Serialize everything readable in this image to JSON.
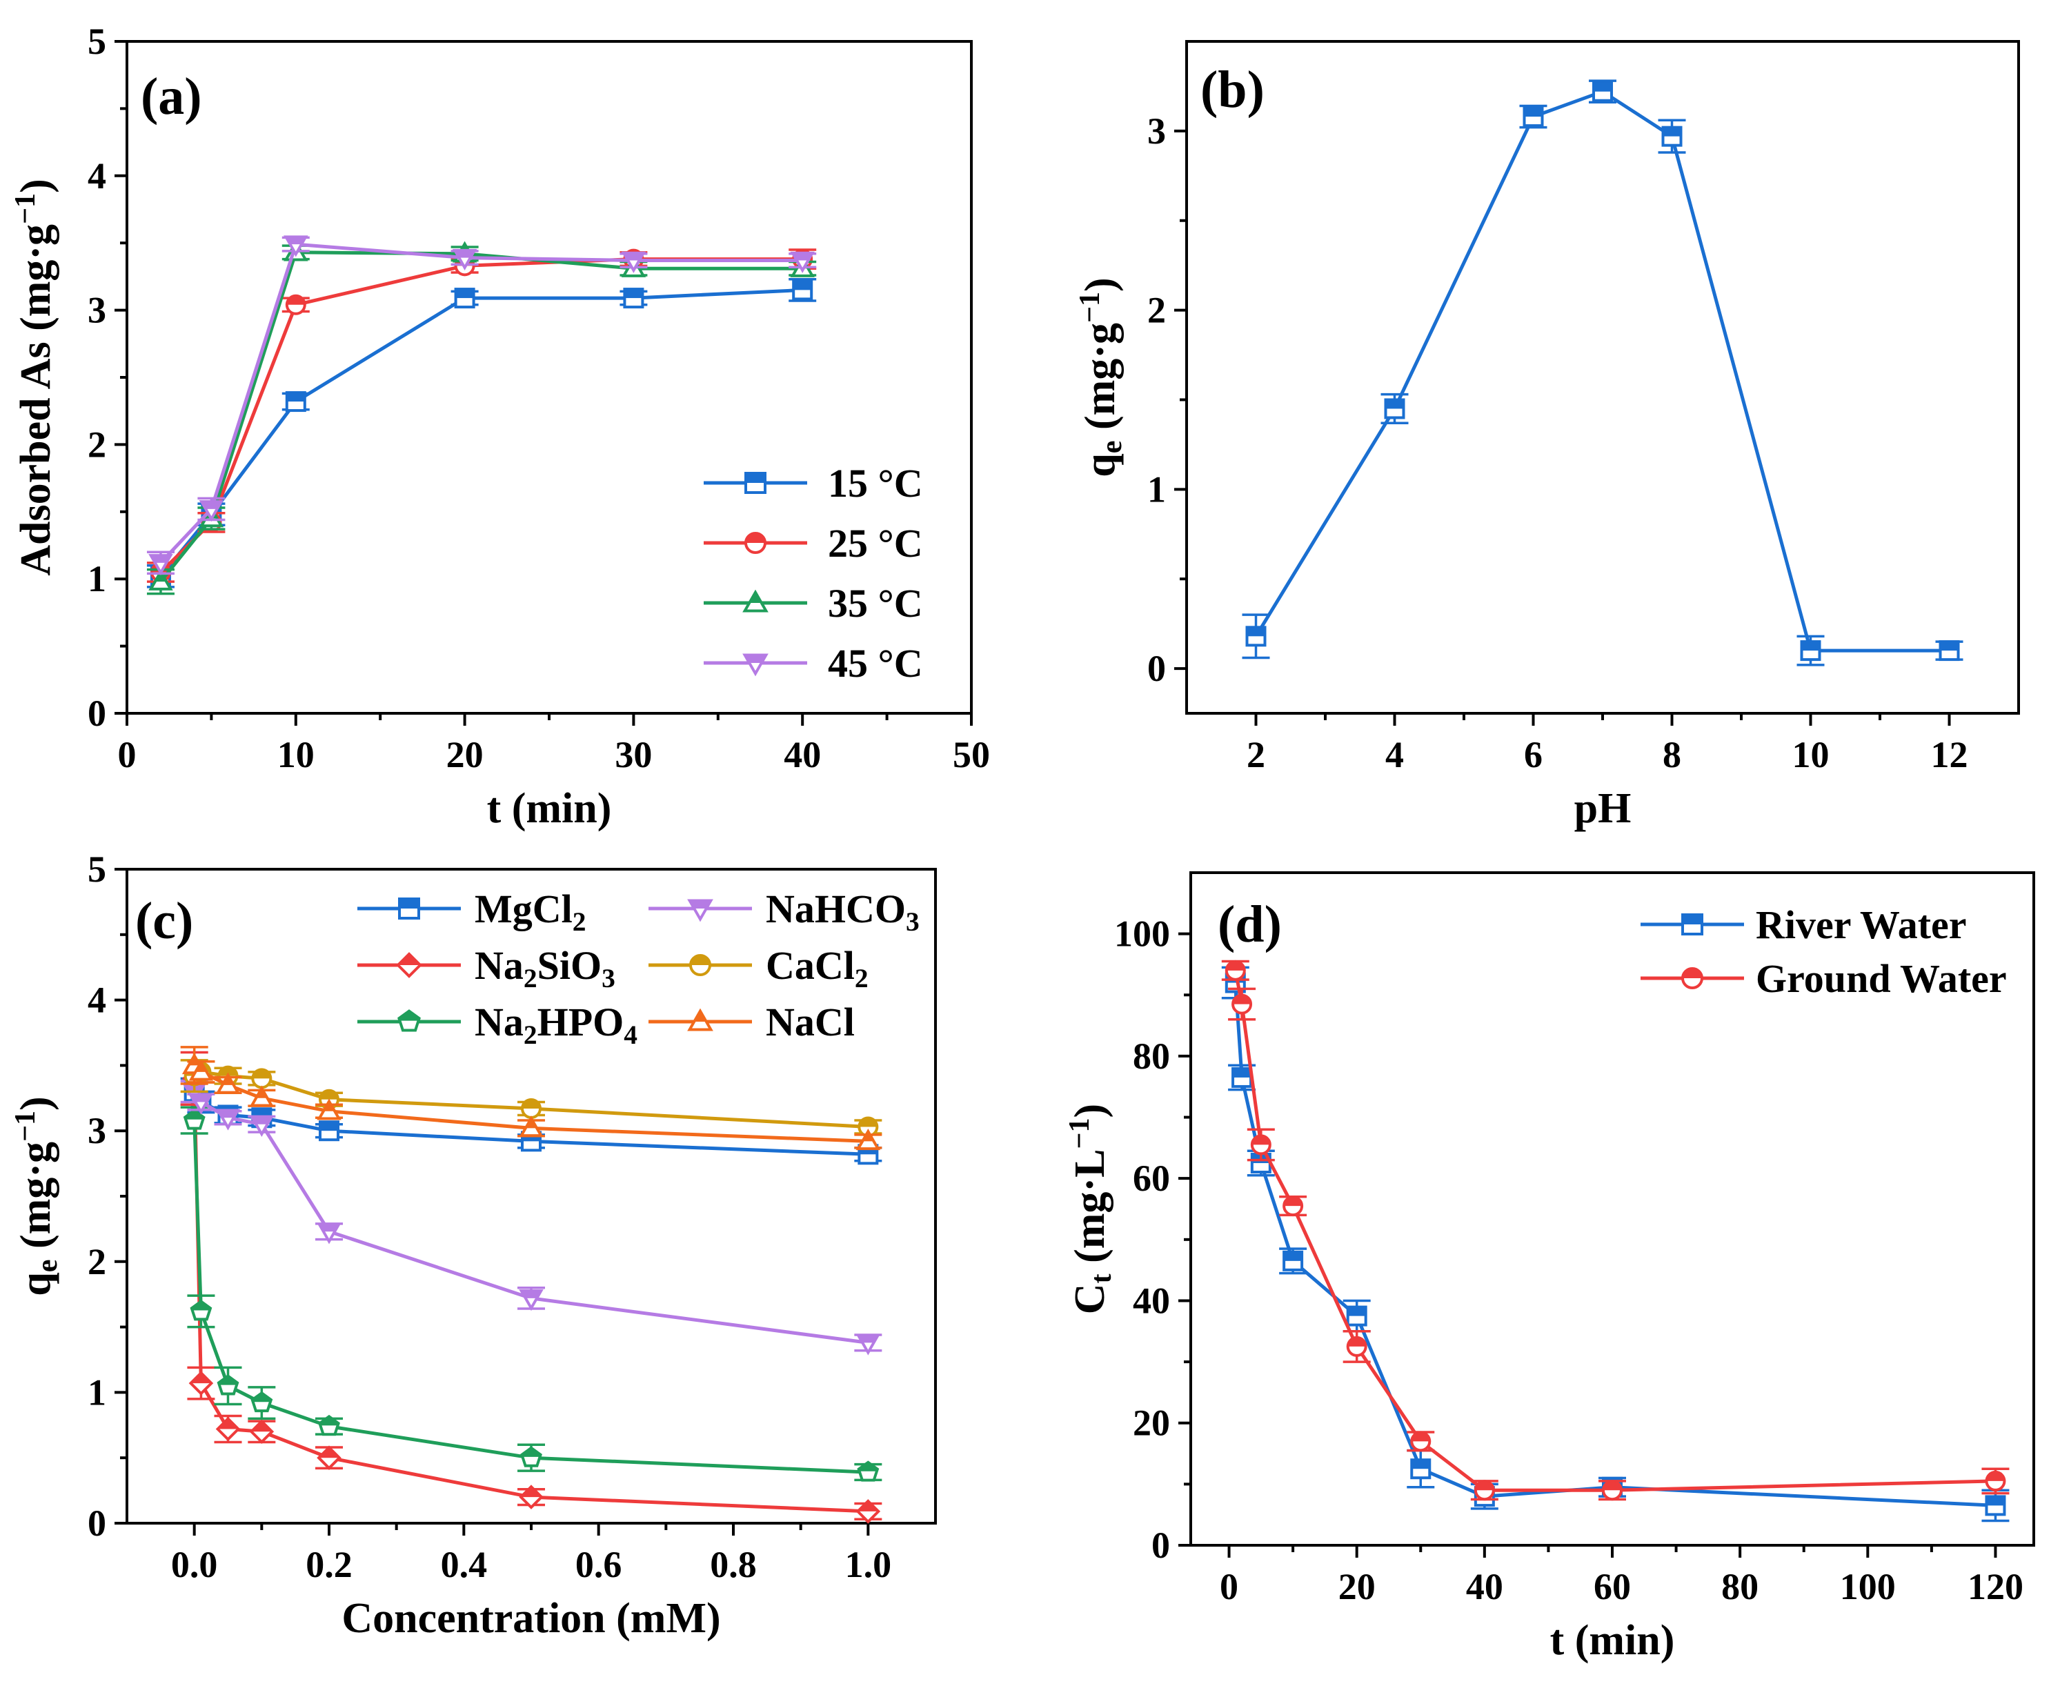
{
  "chart_data": [
    {
      "panel_label": "(a)",
      "type": "line",
      "xlabel": "t (min)",
      "ylabel": "Adsorbed As (mg·g⁻¹)",
      "xlim": [
        0,
        50
      ],
      "ylim": [
        0,
        5
      ],
      "xticks": [
        0,
        10,
        20,
        30,
        40,
        50
      ],
      "yticks": [
        0,
        1,
        2,
        3,
        4,
        5
      ],
      "legend_position": "bottom-right",
      "x": [
        2,
        5,
        10,
        20,
        30,
        40
      ],
      "series": [
        {
          "name": "15 °C",
          "color": "#1a6fd1",
          "marker": "square",
          "values": [
            1.02,
            1.48,
            2.32,
            3.09,
            3.09,
            3.15
          ],
          "errors": [
            0.08,
            0.08,
            0.06,
            0.05,
            0.05,
            0.08
          ]
        },
        {
          "name": "25 °C",
          "color": "#ee3b3b",
          "marker": "circle",
          "values": [
            1.05,
            1.42,
            3.04,
            3.33,
            3.38,
            3.38
          ],
          "errors": [
            0.07,
            0.07,
            0.05,
            0.05,
            0.05,
            0.07
          ]
        },
        {
          "name": "35 °C",
          "color": "#1f9e5a",
          "marker": "triangle-up",
          "values": [
            0.98,
            1.45,
            3.43,
            3.42,
            3.31,
            3.31
          ],
          "errors": [
            0.09,
            0.08,
            0.05,
            0.05,
            0.05,
            0.05
          ]
        },
        {
          "name": "45 °C",
          "color": "#b57be4",
          "marker": "triangle-down",
          "values": [
            1.12,
            1.52,
            3.49,
            3.39,
            3.37,
            3.37
          ],
          "errors": [
            0.08,
            0.08,
            0.05,
            0.05,
            0.05,
            0.05
          ]
        }
      ]
    },
    {
      "panel_label": "(b)",
      "type": "line",
      "xlabel": "pH",
      "ylabel": "qe (mg·g⁻¹)",
      "xlim": [
        1,
        13
      ],
      "ylim": [
        -0.25,
        3.5
      ],
      "xticks": [
        2,
        4,
        6,
        8,
        10,
        12
      ],
      "yticks": [
        0,
        1,
        2,
        3
      ],
      "x": [
        2,
        4,
        6,
        7,
        8,
        10,
        12
      ],
      "series": [
        {
          "name": "pH series",
          "color": "#1a6fd1",
          "marker": "square",
          "values": [
            0.18,
            1.45,
            3.08,
            3.22,
            2.97,
            0.1,
            0.1
          ],
          "errors": [
            0.12,
            0.08,
            0.06,
            0.06,
            0.09,
            0.08,
            0.05
          ]
        }
      ]
    },
    {
      "panel_label": "(c)",
      "type": "line",
      "xlabel": "Concentration (mM)",
      "ylabel": "qe (mg·g⁻¹)",
      "xlim": [
        -0.1,
        1.1
      ],
      "ylim": [
        0,
        5
      ],
      "xticks": [
        0.0,
        0.2,
        0.4,
        0.6,
        0.8,
        1.0
      ],
      "xtick_labels": [
        "0.0",
        "0.2",
        "0.4",
        "0.6",
        "0.8",
        "1.0"
      ],
      "yticks": [
        0,
        1,
        2,
        3,
        4,
        5
      ],
      "legend_position": "top",
      "x": [
        0.0,
        0.01,
        0.05,
        0.1,
        0.2,
        0.5,
        1.0
      ],
      "series": [
        {
          "name": "MgCl2",
          "base": "MgCl",
          "sub": "2",
          "tail": "",
          "color": "#1a6fd1",
          "marker": "square",
          "values": [
            3.3,
            3.22,
            3.12,
            3.1,
            3.0,
            2.92,
            2.82
          ],
          "errors": [
            0.1,
            0.08,
            0.06,
            0.06,
            0.05,
            0.05,
            0.05
          ]
        },
        {
          "name": "Na2SiO3",
          "base": "Na",
          "sub": "2",
          "tail": "SiO",
          "sub2": "3",
          "color": "#ee3b3b",
          "marker": "diamond",
          "values": [
            3.4,
            1.07,
            0.72,
            0.7,
            0.5,
            0.2,
            0.09
          ],
          "errors": [
            0.2,
            0.12,
            0.1,
            0.08,
            0.08,
            0.06,
            0.06
          ]
        },
        {
          "name": "Na2HPO4",
          "base": "Na",
          "sub": "2",
          "tail": "HPO",
          "sub2": "4",
          "color": "#1f9e5a",
          "marker": "pentagon",
          "values": [
            3.08,
            1.62,
            1.05,
            0.92,
            0.74,
            0.5,
            0.39
          ],
          "errors": [
            0.1,
            0.12,
            0.14,
            0.12,
            0.06,
            0.1,
            0.06
          ]
        },
        {
          "name": "NaHCO3",
          "base": "NaHCO",
          "sub": "3",
          "tail": "",
          "color": "#b57be4",
          "marker": "triangle-down",
          "values": [
            3.3,
            3.22,
            3.1,
            3.05,
            2.23,
            1.72,
            1.38
          ],
          "errors": [
            0.08,
            0.06,
            0.05,
            0.06,
            0.06,
            0.08,
            0.06
          ]
        },
        {
          "name": "CaCl2",
          "base": "CaCl",
          "sub": "2",
          "tail": "",
          "color": "#d19a0e",
          "marker": "circle",
          "values": [
            3.42,
            3.45,
            3.42,
            3.4,
            3.24,
            3.17,
            3.03
          ],
          "errors": [
            0.12,
            0.08,
            0.06,
            0.05,
            0.05,
            0.05,
            0.05
          ]
        },
        {
          "name": "NaCl",
          "base": "NaCl",
          "sub": "",
          "tail": "",
          "color": "#f26a1b",
          "marker": "triangle-up",
          "values": [
            3.5,
            3.45,
            3.35,
            3.25,
            3.15,
            3.02,
            2.92
          ],
          "errors": [
            0.14,
            0.08,
            0.06,
            0.06,
            0.05,
            0.06,
            0.05
          ]
        }
      ]
    },
    {
      "panel_label": "(d)",
      "type": "line",
      "xlabel": "t (min)",
      "ylabel": "Ct (mg·L⁻¹)",
      "xlim": [
        -6,
        126
      ],
      "ylim": [
        0,
        110
      ],
      "xticks": [
        0,
        20,
        40,
        60,
        80,
        100,
        120
      ],
      "yticks": [
        0,
        20,
        40,
        60,
        80,
        100
      ],
      "legend_position": "top-right",
      "series": [
        {
          "name": "River Water",
          "color": "#1a6fd1",
          "marker": "square",
          "x": [
            1,
            2,
            5,
            10,
            20,
            30,
            40,
            60,
            120
          ],
          "values": [
            92,
            76.5,
            62.5,
            46.5,
            37.5,
            12.5,
            8,
            9.5,
            6.5
          ],
          "errors": [
            2.5,
            2,
            2,
            2,
            2.5,
            3,
            2,
            1.5,
            2.5
          ]
        },
        {
          "name": "Ground Water",
          "color": "#ee3b3b",
          "marker": "circle",
          "x": [
            1,
            2,
            5,
            10,
            20,
            30,
            40,
            60,
            120
          ],
          "values": [
            94,
            88.5,
            65.5,
            55.5,
            32.5,
            17,
            9,
            9,
            10.5
          ],
          "errors": [
            1.5,
            2.5,
            2.5,
            1.5,
            2.5,
            1.5,
            1.5,
            1.5,
            2
          ]
        }
      ]
    }
  ]
}
